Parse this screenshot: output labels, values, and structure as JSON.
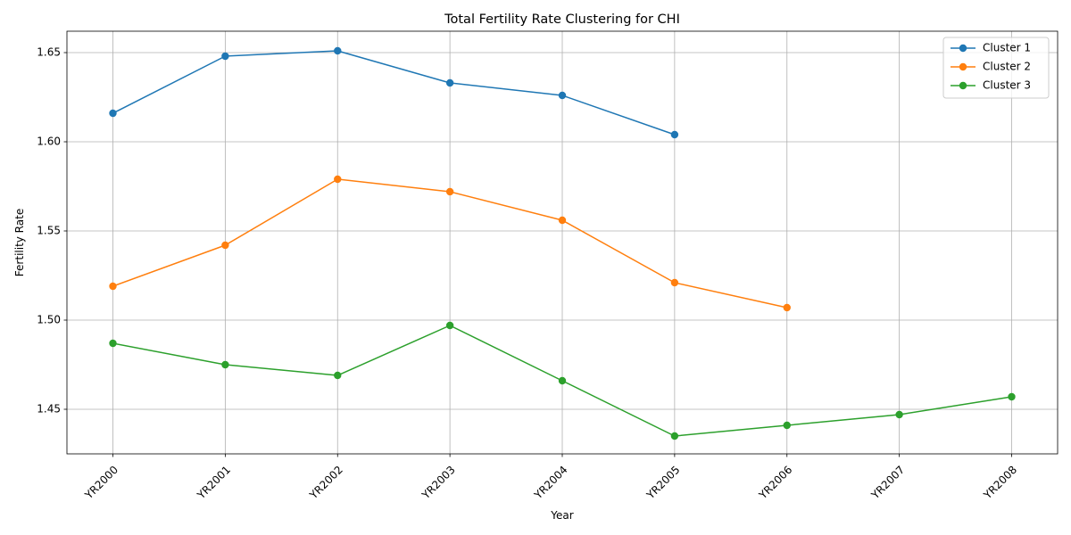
{
  "chart_data": {
    "type": "line",
    "title": "Total Fertility Rate Clustering for CHI",
    "xlabel": "Year",
    "ylabel": "Fertility Rate",
    "categories": [
      "YR2000",
      "YR2001",
      "YR2002",
      "YR2003",
      "YR2004",
      "YR2005",
      "YR2006",
      "YR2007",
      "YR2008"
    ],
    "ylim": [
      1.425,
      1.662
    ],
    "yticks": [
      1.45,
      1.5,
      1.55,
      1.6,
      1.65
    ],
    "ytick_labels": [
      "1.45",
      "1.50",
      "1.55",
      "1.60",
      "1.65"
    ],
    "grid": true,
    "legend_position": "top-right",
    "series": [
      {
        "name": "Cluster 1",
        "color": "#1f77b4",
        "values": [
          1.616,
          1.648,
          1.651,
          1.633,
          1.626,
          1.604,
          null,
          null,
          null
        ]
      },
      {
        "name": "Cluster 2",
        "color": "#ff7f0e",
        "values": [
          1.519,
          1.542,
          1.579,
          1.572,
          1.556,
          1.521,
          1.507,
          null,
          null
        ]
      },
      {
        "name": "Cluster 3",
        "color": "#2ca02c",
        "values": [
          1.487,
          1.475,
          1.469,
          1.497,
          1.466,
          1.435,
          1.441,
          1.447,
          1.457
        ]
      }
    ]
  }
}
